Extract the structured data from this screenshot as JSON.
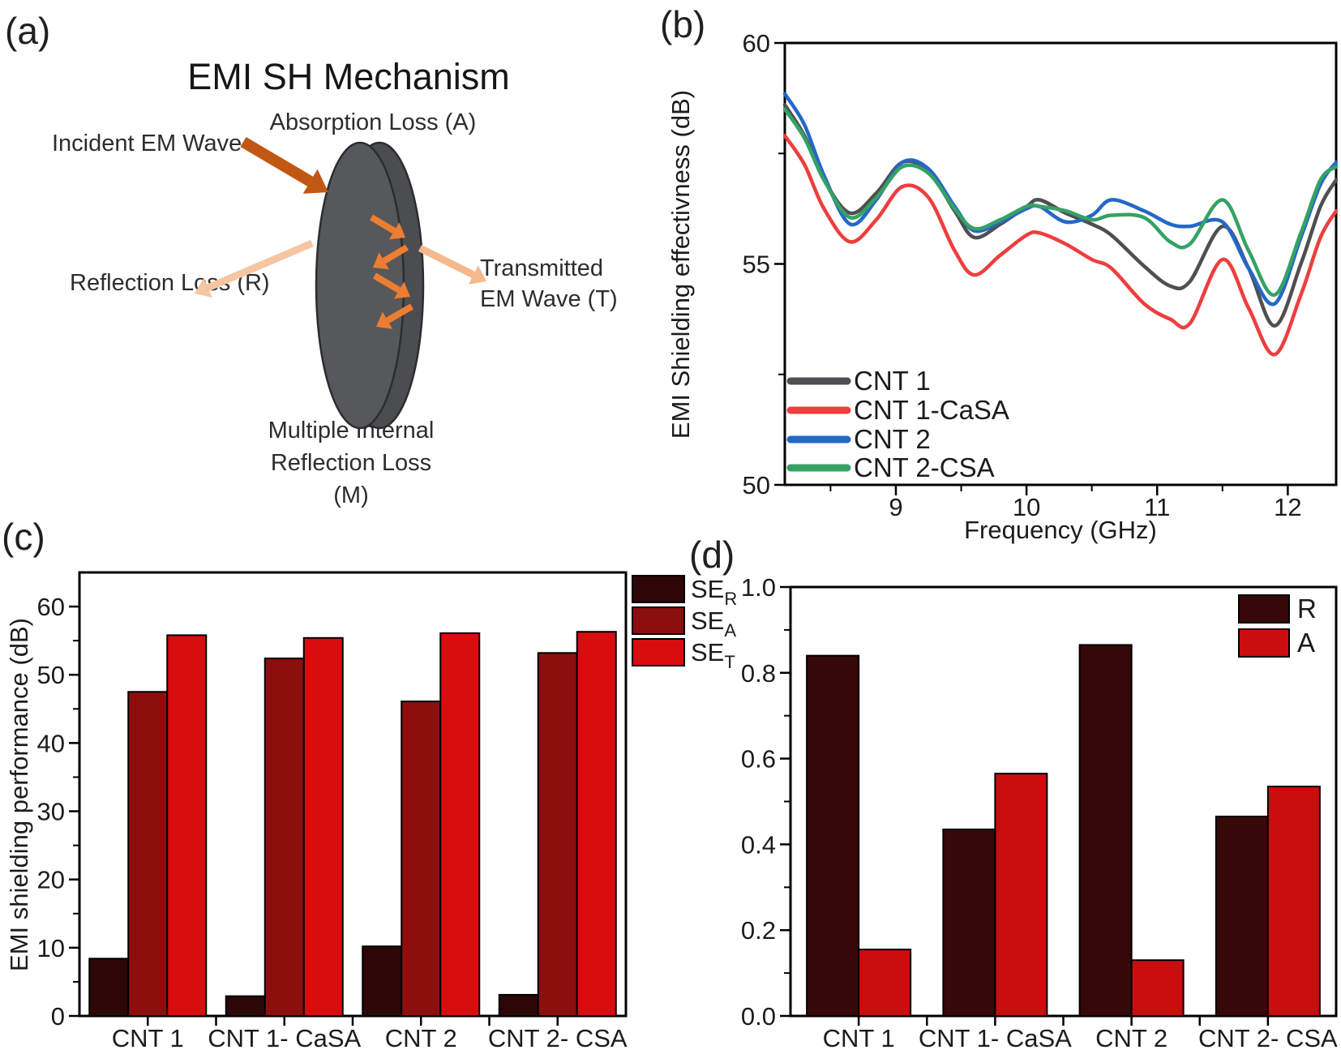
{
  "panels": {
    "a": {
      "label": "(a)",
      "title": "EMI SH Mechanism",
      "annotations": {
        "incident": "Incident EM Wave",
        "absorption": "Absorption Loss (A)",
        "reflection": "Reflection Loss (R)",
        "transmitted_line1": "Transmitted",
        "transmitted_line2": "EM Wave (T)",
        "multiple_line1": "Multiple Internal",
        "multiple_line2": "Reflection Loss",
        "multiple_line3": "(M)"
      },
      "colors": {
        "disk_face": "#57585b",
        "disk_back": "#4c4d50",
        "disk_edge": "#2c2d2f",
        "incident_arrow": "#c05712",
        "reflected_arrow": "#f6c5a2",
        "transmitted_arrow": "#f5b98d",
        "internal_arrow": "#ed7d31"
      }
    },
    "b": {
      "label": "(b)"
    },
    "c": {
      "label": "(c)"
    },
    "d": {
      "label": "(d)"
    }
  },
  "chart_data": [
    {
      "id": "panel-b",
      "type": "line",
      "title": "",
      "xlabel": "Frequency (GHz)",
      "ylabel": "EMI Shielding effectivness (dB)",
      "xlim": [
        8.15,
        12.37
      ],
      "ylim": [
        50,
        60
      ],
      "grid": false,
      "legend_position": "lower-left",
      "x_ticks": {
        "major": [
          {
            "v": 9,
            "label": "9"
          },
          {
            "v": 10,
            "label": "10"
          },
          {
            "v": 11,
            "label": "11"
          },
          {
            "v": 12,
            "label": "12"
          }
        ],
        "minor": [
          8.5,
          9.5,
          10.5,
          11.5
        ]
      },
      "y_ticks": {
        "major": [
          {
            "v": 50,
            "label": "50"
          },
          {
            "v": 55,
            "label": "55"
          },
          {
            "v": 60,
            "label": "60"
          }
        ],
        "minor": [
          52.5,
          57.5
        ]
      },
      "x": [
        8.15,
        8.3,
        8.45,
        8.65,
        8.85,
        9.05,
        9.25,
        9.45,
        9.6,
        9.8,
        10.0,
        10.1,
        10.3,
        10.5,
        10.65,
        10.9,
        11.1,
        11.25,
        11.5,
        11.7,
        11.9,
        12.1,
        12.25,
        12.37
      ],
      "series": [
        {
          "name": "CNT 1",
          "color": "#4f4f51",
          "values": [
            58.6,
            57.9,
            56.9,
            56.15,
            56.6,
            57.3,
            57.1,
            56.2,
            55.6,
            55.9,
            56.3,
            56.45,
            56.15,
            55.9,
            55.65,
            54.95,
            54.5,
            54.6,
            55.85,
            54.9,
            53.6,
            55.0,
            56.3,
            56.9
          ]
        },
        {
          "name": "CNT 1-CaSA",
          "color": "#ee3e3e",
          "values": [
            57.9,
            57.25,
            56.25,
            55.5,
            56.0,
            56.75,
            56.5,
            55.3,
            54.75,
            55.2,
            55.65,
            55.7,
            55.45,
            55.1,
            54.9,
            54.1,
            53.75,
            53.65,
            55.1,
            54.0,
            52.95,
            54.3,
            55.6,
            56.2
          ]
        },
        {
          "name": "CNT 2",
          "color": "#2468c6",
          "values": [
            58.85,
            58.15,
            57.0,
            55.9,
            56.45,
            57.3,
            57.15,
            56.3,
            55.75,
            55.95,
            56.25,
            56.3,
            55.95,
            56.1,
            56.45,
            56.2,
            55.9,
            55.85,
            55.95,
            54.9,
            54.1,
            55.6,
            56.8,
            57.3
          ]
        },
        {
          "name": "CNT 2-CSA",
          "color": "#35a264",
          "values": [
            58.5,
            57.85,
            56.9,
            56.05,
            56.5,
            57.2,
            57.05,
            56.25,
            55.8,
            56.0,
            56.3,
            56.3,
            56.2,
            56.0,
            56.1,
            56.05,
            55.5,
            55.45,
            56.45,
            55.3,
            54.3,
            55.7,
            56.9,
            57.2
          ]
        }
      ]
    },
    {
      "id": "panel-c",
      "type": "bar",
      "title": "",
      "xlabel": "",
      "ylabel": "EMI shielding performance (dB)",
      "ylim": [
        0,
        65
      ],
      "grid": false,
      "legend_position": "outside-right",
      "categories": [
        "CNT 1",
        "CNT 1- CaSA",
        "CNT 2",
        "CNT 2- CSA"
      ],
      "y_ticks": {
        "major": [
          {
            "v": 0,
            "label": "0"
          },
          {
            "v": 10,
            "label": "10"
          },
          {
            "v": 20,
            "label": "20"
          },
          {
            "v": 30,
            "label": "30"
          },
          {
            "v": 40,
            "label": "40"
          },
          {
            "v": 50,
            "label": "50"
          },
          {
            "v": 60,
            "label": "60"
          }
        ],
        "minor": [
          5,
          15,
          25,
          35,
          45,
          55
        ]
      },
      "series": [
        {
          "name": "SE",
          "sub": "R",
          "color": "#2d0708",
          "values": [
            8.4,
            2.9,
            10.2,
            3.1
          ]
        },
        {
          "name": "SE",
          "sub": "A",
          "color": "#8c0f0e",
          "values": [
            47.5,
            52.4,
            46.1,
            53.2
          ]
        },
        {
          "name": "SE",
          "sub": "T",
          "color": "#da0d0e",
          "values": [
            55.8,
            55.4,
            56.1,
            56.3
          ]
        }
      ]
    },
    {
      "id": "panel-d",
      "type": "bar",
      "title": "",
      "xlabel": "",
      "ylabel": "",
      "ylim": [
        0,
        1.0
      ],
      "grid": false,
      "legend_position": "upper-right",
      "categories": [
        "CNT 1",
        "CNT 1- CaSA",
        "CNT 2",
        "CNT 2- CSA"
      ],
      "y_ticks": {
        "major": [
          {
            "v": 0,
            "label": "0.0"
          },
          {
            "v": 0.2,
            "label": "0.2"
          },
          {
            "v": 0.4,
            "label": "0.4"
          },
          {
            "v": 0.6,
            "label": "0.6"
          },
          {
            "v": 0.8,
            "label": "0.8"
          },
          {
            "v": 1.0,
            "label": "1.0"
          }
        ],
        "minor": [
          0.1,
          0.3,
          0.5,
          0.7,
          0.9
        ]
      },
      "series": [
        {
          "name": "R",
          "color": "#370808",
          "values": [
            0.84,
            0.435,
            0.865,
            0.465
          ]
        },
        {
          "name": "A",
          "color": "#cb0d0d",
          "values": [
            0.155,
            0.565,
            0.13,
            0.535
          ]
        }
      ]
    }
  ]
}
